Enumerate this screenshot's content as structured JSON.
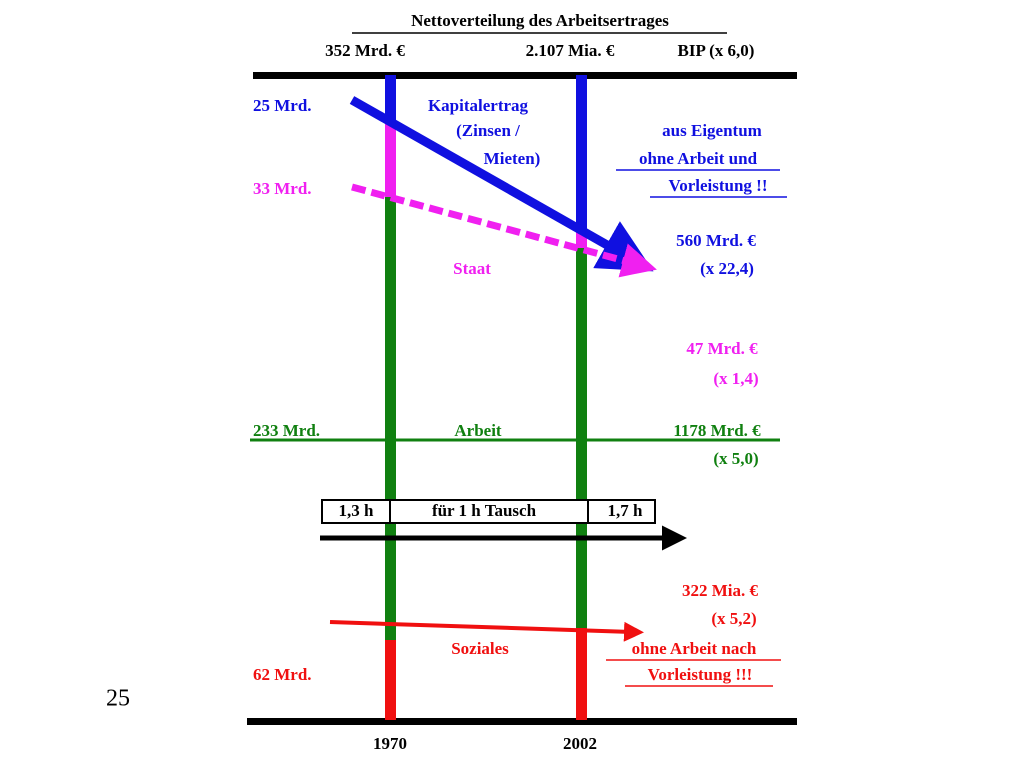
{
  "title": "Nettoverteilung des Arbeitsertrages",
  "header": {
    "left": "352 Mrd. €",
    "middle": "2.107 Mia. €",
    "right": "BIP  (x 6,0)"
  },
  "kapital": {
    "start": "25 Mrd.",
    "label": [
      "Kapitalertrag",
      "(Zinsen /",
      "Mieten)"
    ],
    "note": [
      "aus Eigentum",
      "ohne Arbeit und",
      "Vorleistung !!"
    ],
    "end": [
      "560 Mrd. €",
      "(x 22,4)"
    ]
  },
  "staat": {
    "start": "33 Mrd.",
    "label": "Staat",
    "end": [
      "47 Mrd. €",
      "(x  1,4)"
    ]
  },
  "arbeit": {
    "start": "233 Mrd.",
    "label": "Arbeit",
    "end": [
      "1178 Mrd. €",
      "(x  5,0)"
    ]
  },
  "tausch": {
    "left": "1,3 h",
    "middle": "für 1 h Tausch",
    "right": "1,7 h"
  },
  "soziales": {
    "start": "62 Mrd.",
    "label": "Soziales",
    "end": [
      "322 Mia. €",
      "(x   5,2)"
    ],
    "note": [
      "ohne Arbeit nach",
      "Vorleistung !!!"
    ]
  },
  "years": [
    "1970",
    "2002"
  ],
  "page_number": "25"
}
